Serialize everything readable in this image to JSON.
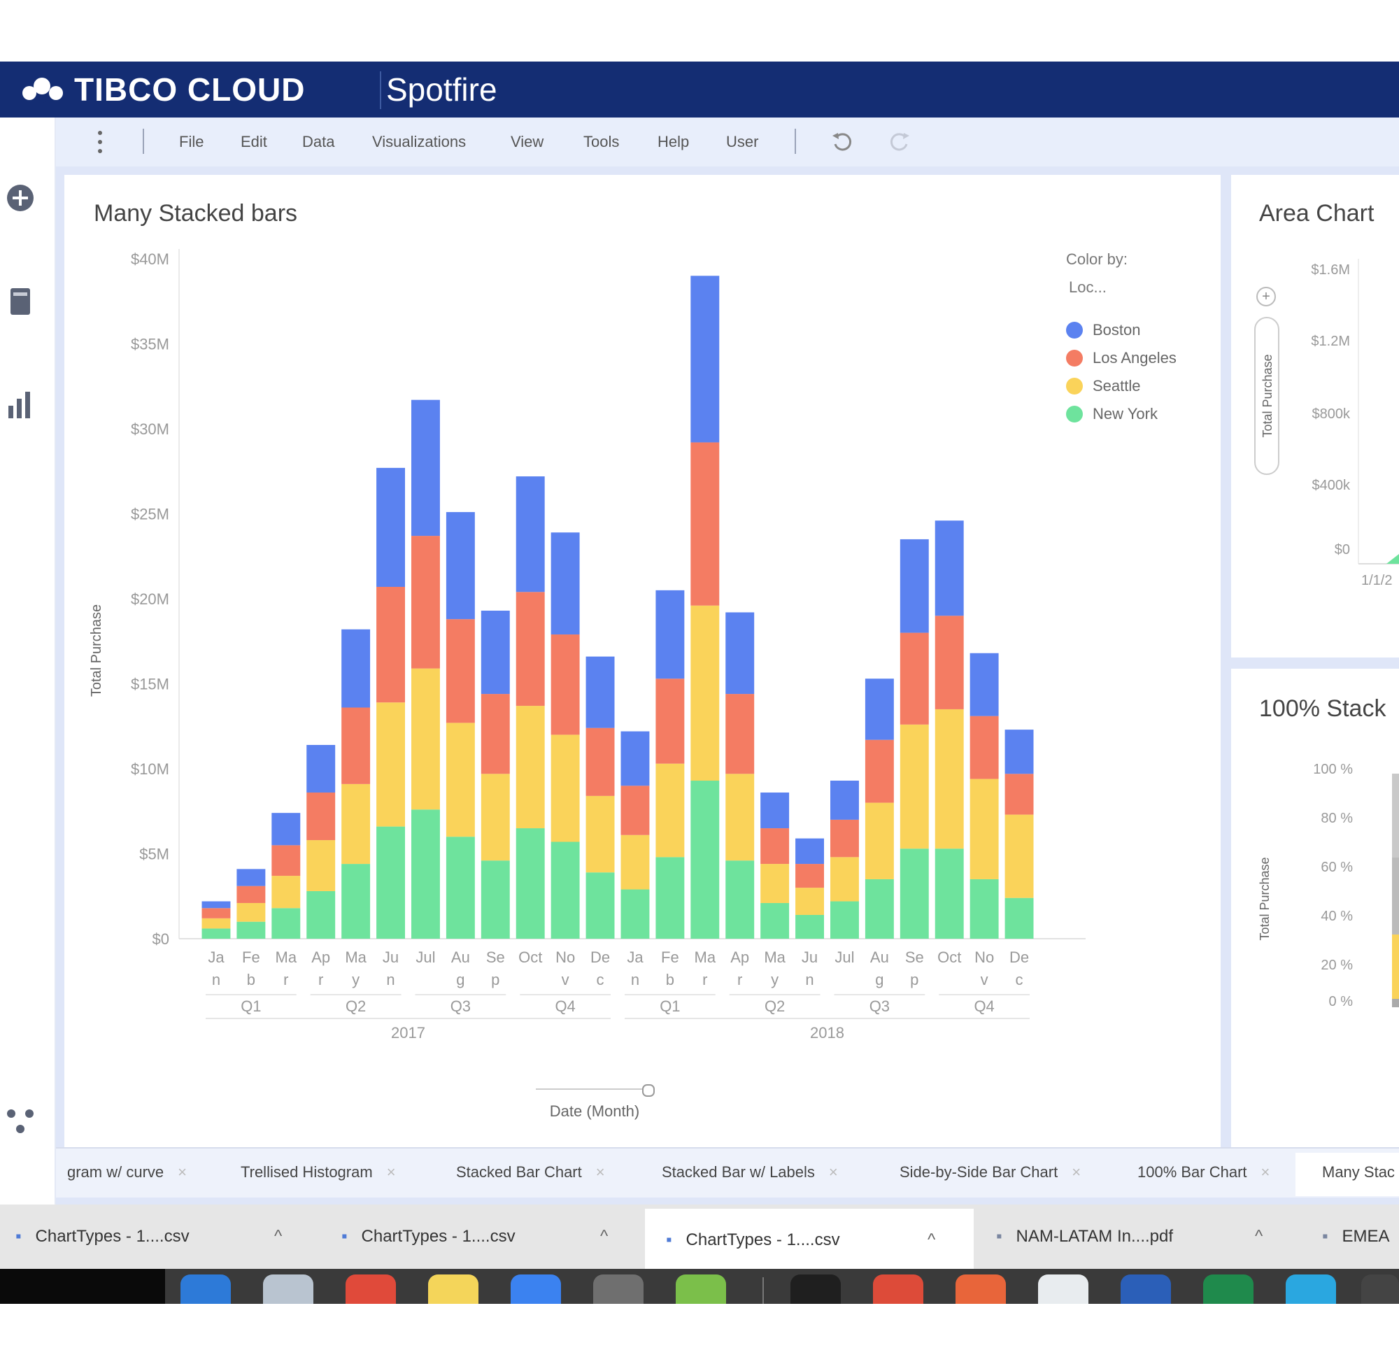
{
  "brand": {
    "name": "TIBCO CLOUD",
    "product": "Spotfire"
  },
  "menubar": {
    "items": [
      "File",
      "Edit",
      "Data",
      "Visualizations",
      "View",
      "Tools",
      "Help",
      "User"
    ]
  },
  "left_rail": {
    "icons": [
      "add-icon",
      "data-table-icon",
      "bar-chart-icon",
      "share-icon"
    ]
  },
  "panels": {
    "main_title": "Many Stacked bars",
    "area_title": "Area Chart",
    "pct_title": "100% Stack"
  },
  "legend": {
    "header1": "Color by:",
    "header2": "Loc...",
    "items": [
      {
        "label": "Boston",
        "color": "#5b82f0"
      },
      {
        "label": "Los Angeles",
        "color": "#f47c63"
      },
      {
        "label": "Seattle",
        "color": "#fad35a"
      },
      {
        "label": "New York",
        "color": "#6ee39d"
      }
    ]
  },
  "slider": {
    "label": "Date (Month)"
  },
  "chart_data": [
    {
      "type": "bar",
      "stacked": true,
      "title": "Many Stacked bars",
      "ylabel": "Total Purchase",
      "xlabel": "Date (Month)",
      "ylim": [
        0,
        40
      ],
      "ytick_labels": [
        "$0",
        "$5M",
        "$10M",
        "$15M",
        "$20M",
        "$25M",
        "$30M",
        "$35M",
        "$40M"
      ],
      "ytick_values": [
        0,
        5,
        10,
        15,
        20,
        25,
        30,
        35,
        40
      ],
      "categories": [
        {
          "l1": "Ja",
          "l2": "n"
        },
        {
          "l1": "Fe",
          "l2": "b"
        },
        {
          "l1": "Ma",
          "l2": "r"
        },
        {
          "l1": "Ap",
          "l2": "r"
        },
        {
          "l1": "Ma",
          "l2": "y"
        },
        {
          "l1": "Ju",
          "l2": "n"
        },
        {
          "l1": "Jul",
          "l2": ""
        },
        {
          "l1": "Au",
          "l2": "g"
        },
        {
          "l1": "Se",
          "l2": "p"
        },
        {
          "l1": "Oct",
          "l2": ""
        },
        {
          "l1": "No",
          "l2": "v"
        },
        {
          "l1": "De",
          "l2": "c"
        },
        {
          "l1": "Ja",
          "l2": "n"
        },
        {
          "l1": "Fe",
          "l2": "b"
        },
        {
          "l1": "Ma",
          "l2": "r"
        },
        {
          "l1": "Ap",
          "l2": "r"
        },
        {
          "l1": "Ma",
          "l2": "y"
        },
        {
          "l1": "Ju",
          "l2": "n"
        },
        {
          "l1": "Jul",
          "l2": ""
        },
        {
          "l1": "Au",
          "l2": "g"
        },
        {
          "l1": "Se",
          "l2": "p"
        },
        {
          "l1": "Oct",
          "l2": ""
        },
        {
          "l1": "No",
          "l2": "v"
        },
        {
          "l1": "De",
          "l2": "c"
        }
      ],
      "quarters": [
        "Q1",
        "Q2",
        "Q3",
        "Q4",
        "Q1",
        "Q2",
        "Q3",
        "Q4"
      ],
      "years": [
        "2017",
        "2018"
      ],
      "series": [
        {
          "name": "New York",
          "color": "#6ee39d",
          "values": [
            0.6,
            1.0,
            1.8,
            2.8,
            4.4,
            6.6,
            7.6,
            6.0,
            4.6,
            6.5,
            5.7,
            3.9,
            2.9,
            4.8,
            9.3,
            4.6,
            2.1,
            1.4,
            2.2,
            3.5,
            5.3,
            5.3,
            3.5,
            2.4
          ]
        },
        {
          "name": "Seattle",
          "color": "#fad35a",
          "values": [
            0.6,
            1.1,
            1.9,
            3.0,
            4.7,
            7.3,
            8.3,
            6.7,
            5.1,
            7.2,
            6.3,
            4.5,
            3.2,
            5.5,
            10.3,
            5.1,
            2.3,
            1.6,
            2.6,
            4.5,
            7.3,
            8.2,
            5.9,
            4.9
          ]
        },
        {
          "name": "Los Angeles",
          "color": "#f47c63",
          "values": [
            0.6,
            1.0,
            1.8,
            2.8,
            4.5,
            6.8,
            7.8,
            6.1,
            4.7,
            6.7,
            5.9,
            4.0,
            2.9,
            5.0,
            9.6,
            4.7,
            2.1,
            1.4,
            2.2,
            3.7,
            5.4,
            5.5,
            3.7,
            2.4
          ]
        },
        {
          "name": "Boston",
          "color": "#5b82f0",
          "values": [
            0.4,
            1.0,
            1.9,
            2.8,
            4.6,
            7.0,
            8.0,
            6.3,
            4.9,
            6.8,
            6.0,
            4.2,
            3.2,
            5.2,
            9.8,
            4.8,
            2.1,
            1.5,
            2.3,
            3.6,
            5.5,
            5.6,
            3.7,
            2.6
          ]
        }
      ]
    },
    {
      "type": "area",
      "title": "Area Chart",
      "ylabel": "Total Purchase",
      "ytick_labels": [
        "$0",
        "$400k",
        "$800k",
        "$1.2M",
        "$1.6M"
      ],
      "xtick_labels": [
        "1/1/2"
      ]
    },
    {
      "type": "bar",
      "title": "100% Stack",
      "ylabel": "Total Purchase",
      "ytick_labels": [
        "0 %",
        "20 %",
        "40 %",
        "60 %",
        "80 %",
        "100 %"
      ]
    }
  ],
  "tabs": [
    "gram w/ curve",
    "Trellised Histogram",
    "Stacked Bar Chart",
    "Stacked Bar w/ Labels",
    "Side-by-Side Bar Chart",
    "100% Bar Chart",
    "Many Stac"
  ],
  "downloads": [
    "ChartTypes - 1....csv",
    "ChartTypes - 1....csv",
    "ChartTypes - 1....csv",
    "NAM-LATAM In....pdf",
    "EMEA"
  ]
}
